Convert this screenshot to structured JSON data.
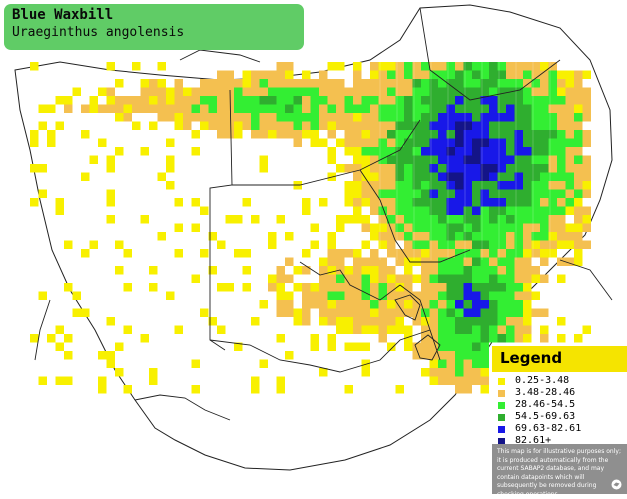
{
  "title": {
    "common_name": "Blue Waxbill",
    "scientific_name": "Uraeginthus angolensis",
    "background_color": "#60cc66"
  },
  "legend": {
    "heading": "Legend",
    "heading_color": "#f5e400",
    "classes": [
      {
        "label": "0.25-3.48",
        "color": "#f8f000"
      },
      {
        "label": "3.48-28.46",
        "color": "#f4c050"
      },
      {
        "label": "28.46-54.5",
        "color": "#33ee33"
      },
      {
        "label": "54.5-69.63",
        "color": "#2fae2f"
      },
      {
        "label": "69.63-82.61",
        "color": "#1818e8"
      },
      {
        "label": "82.61+",
        "color": "#141488"
      }
    ],
    "disclaimer": "This map is for illustrative purposes only; it is produced automatically from the current SABAP2 database, and may contain datapoints which will subsequently be removed during checking operations.",
    "logo_icon": "bird-atlas-logo-icon"
  },
  "map": {
    "land_color": "#ffffff",
    "border_color": "#222222",
    "overlay_grid": true
  }
}
